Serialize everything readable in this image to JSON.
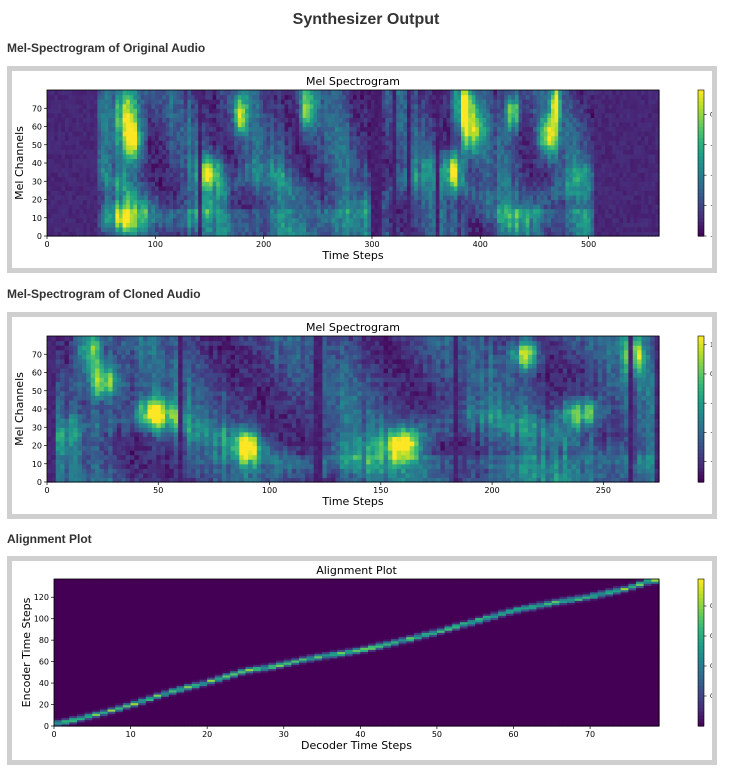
{
  "page": {
    "title": "Synthesizer Output"
  },
  "sections": {
    "original": {
      "heading": "Mel-Spectrogram of Original Audio"
    },
    "cloned": {
      "heading": "Mel-Spectrogram of Cloned Audio"
    },
    "alignment": {
      "heading": "Alignment Plot"
    }
  },
  "colors": {
    "frame_border": "#cfcfcf",
    "viridis": [
      "#440154",
      "#482878",
      "#3e4989",
      "#31688e",
      "#26828e",
      "#1f9e89",
      "#35b779",
      "#6ece58",
      "#b5de2b",
      "#fde725"
    ]
  },
  "chart_data": [
    {
      "id": "original",
      "type": "heatmap",
      "title": "Mel Spectrogram",
      "xlabel": "Time Steps",
      "ylabel": "Mel Channels",
      "xlim": [
        0,
        565
      ],
      "ylim": [
        0,
        80
      ],
      "xticks": [
        0,
        100,
        200,
        300,
        400,
        500
      ],
      "yticks": [
        0,
        10,
        20,
        30,
        40,
        50,
        60,
        70
      ],
      "colorbar": {
        "range": [
          -4,
          0.8
        ],
        "ticks": [
          0,
          -1,
          -2,
          -3,
          -4
        ],
        "tick_labels": [
          "0",
          "−1",
          "−2",
          "−3",
          "−4"
        ]
      },
      "silence_before": 48,
      "silence_after": 505,
      "silent_gaps": [
        [
          138,
          142
        ],
        [
          300,
          308
        ],
        [
          318,
          322
        ],
        [
          331,
          336
        ],
        [
          358,
          361
        ]
      ],
      "hot_spots": [
        [
          75,
          68,
          12,
          16
        ],
        [
          80,
          52,
          8,
          10
        ],
        [
          178,
          66,
          6,
          10
        ],
        [
          385,
          72,
          8,
          10
        ],
        [
          392,
          58,
          10,
          12
        ],
        [
          470,
          72,
          5,
          10
        ],
        [
          463,
          55,
          8,
          10
        ],
        [
          240,
          70,
          6,
          12
        ],
        [
          70,
          10,
          18,
          8
        ],
        [
          150,
          35,
          10,
          8
        ],
        [
          375,
          36,
          8,
          10
        ],
        [
          430,
          68,
          6,
          10
        ]
      ],
      "seed": 11
    },
    {
      "id": "cloned",
      "type": "heatmap",
      "title": "Mel Spectrogram",
      "xlabel": "Time Steps",
      "ylabel": "Mel Channels",
      "xlim": [
        0,
        275
      ],
      "ylim": [
        0,
        80
      ],
      "xticks": [
        0,
        50,
        100,
        150,
        200,
        250
      ],
      "yticks": [
        0,
        10,
        20,
        30,
        40,
        50,
        60,
        70
      ],
      "colorbar": {
        "range": [
          -3.7,
          1.3
        ],
        "ticks": [
          1,
          0,
          -1,
          -2,
          -3
        ],
        "tick_labels": [
          "1",
          "0",
          "−1",
          "−2",
          "−3"
        ]
      },
      "silence_before": 4,
      "silence_after": 274,
      "silent_gaps": [
        [
          59,
          61
        ],
        [
          120,
          123
        ],
        [
          182,
          184
        ],
        [
          261,
          263
        ]
      ],
      "hot_spots": [
        [
          19,
          72,
          5,
          10
        ],
        [
          215,
          70,
          6,
          8
        ],
        [
          264,
          70,
          4,
          10
        ],
        [
          25,
          55,
          8,
          10
        ],
        [
          50,
          38,
          8,
          8
        ],
        [
          90,
          20,
          6,
          8
        ],
        [
          160,
          20,
          8,
          8
        ],
        [
          240,
          38,
          8,
          8
        ]
      ],
      "seed": 29
    },
    {
      "id": "alignment",
      "type": "heatmap",
      "title": "Alignment Plot",
      "xlabel": "Decoder Time Steps",
      "ylabel": "Encoder Time Steps",
      "xlim": [
        0,
        79
      ],
      "ylim": [
        0,
        137
      ],
      "xticks": [
        0,
        10,
        20,
        30,
        40,
        50,
        60,
        70
      ],
      "yticks": [
        0,
        20,
        40,
        60,
        80,
        100,
        120
      ],
      "colorbar": {
        "range": [
          0,
          0.98
        ],
        "ticks": [
          0.8,
          0.6,
          0.4,
          0.2
        ],
        "tick_labels": [
          "0.8",
          "0.6",
          "0.4",
          "0.2"
        ]
      },
      "path": [
        [
          0,
          2
        ],
        [
          5,
          10
        ],
        [
          10,
          20
        ],
        [
          15,
          32
        ],
        [
          20,
          41
        ],
        [
          25,
          52
        ],
        [
          28,
          55
        ],
        [
          33,
          63
        ],
        [
          40,
          71
        ],
        [
          45,
          79
        ],
        [
          50,
          88
        ],
        [
          55,
          98
        ],
        [
          60,
          108
        ],
        [
          65,
          115
        ],
        [
          70,
          121
        ],
        [
          75,
          129
        ],
        [
          78,
          136
        ]
      ],
      "seed": 7
    }
  ]
}
